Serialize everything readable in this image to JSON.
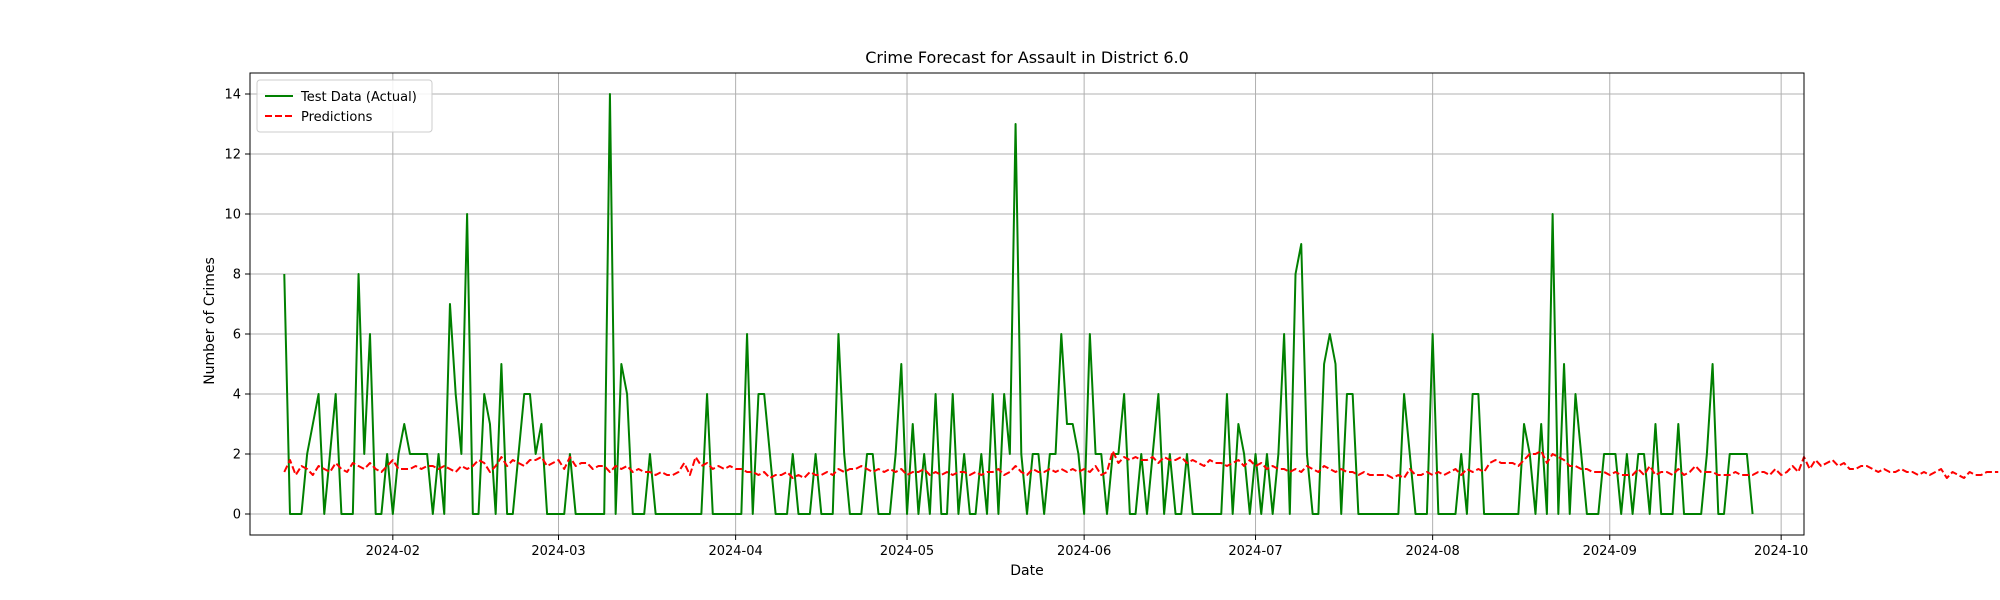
{
  "chart_data": {
    "type": "line",
    "title": "Crime Forecast for Assault in District 6.0",
    "xlabel": "Date",
    "ylabel": "Number of Crimes",
    "x_range": [
      "2024-01-07",
      "2024-10-05"
    ],
    "ylim": [
      -0.7,
      14.7
    ],
    "grid": true,
    "legend_position": "top-left",
    "x_ticks": [
      "2024-02-01",
      "2024-03-01",
      "2024-04-01",
      "2024-05-01",
      "2024-06-01",
      "2024-07-01",
      "2024-08-01",
      "2024-09-01",
      "2024-10-01"
    ],
    "x_tick_labels": [
      "2024-02",
      "2024-03",
      "2024-04",
      "2024-05",
      "2024-06",
      "2024-07",
      "2024-08",
      "2024-09",
      "2024-10"
    ],
    "y_ticks": [
      0,
      2,
      4,
      6,
      8,
      10,
      12,
      14
    ],
    "start_date": "2024-01-13",
    "series": [
      {
        "name": "Test Data (Actual)",
        "color": "#008000",
        "style": "solid",
        "values": [
          8,
          0,
          0,
          0,
          2,
          3,
          4,
          0,
          2,
          4,
          0,
          0,
          0,
          8,
          2,
          6,
          0,
          0,
          2,
          0,
          2,
          3,
          2,
          2,
          2,
          2,
          0,
          2,
          0,
          7,
          4,
          2,
          10,
          0,
          0,
          4,
          3,
          0,
          5,
          0,
          0,
          2,
          4,
          4,
          2,
          3,
          0,
          0,
          0,
          0,
          2,
          0,
          0,
          0,
          0,
          0,
          0,
          14,
          0,
          5,
          4,
          0,
          0,
          0,
          2,
          0,
          0,
          0,
          0,
          0,
          0,
          0,
          0,
          0,
          4,
          0,
          0,
          0,
          0,
          0,
          0,
          6,
          0,
          4,
          4,
          2,
          0,
          0,
          0,
          2,
          0,
          0,
          0,
          2,
          0,
          0,
          0,
          6,
          2,
          0,
          0,
          0,
          2,
          2,
          0,
          0,
          0,
          2,
          5,
          0,
          3,
          0,
          2,
          0,
          4,
          0,
          0,
          4,
          0,
          2,
          0,
          0,
          2,
          0,
          4,
          0,
          4,
          2,
          13,
          2,
          0,
          2,
          2,
          0,
          2,
          2,
          6,
          3,
          3,
          2,
          0,
          6,
          2,
          2,
          0,
          2,
          2,
          4,
          0,
          0,
          2,
          0,
          2,
          4,
          0,
          2,
          0,
          0,
          2,
          0,
          0,
          0,
          0,
          0,
          0,
          4,
          0,
          3,
          2,
          0,
          2,
          0,
          2,
          0,
          2,
          6,
          0,
          8,
          9,
          2,
          0,
          0,
          5,
          6,
          5,
          0,
          4,
          4,
          0,
          0,
          0,
          0,
          0,
          0,
          0,
          0,
          4,
          2,
          0,
          0,
          0,
          6,
          0,
          0,
          0,
          0,
          2,
          0,
          4,
          4,
          0,
          0,
          0,
          0,
          0,
          0,
          0,
          3,
          2,
          0,
          3,
          0,
          10,
          0,
          5,
          0,
          4,
          2,
          0,
          0,
          0,
          2,
          2,
          2,
          0,
          2,
          0,
          2,
          2,
          0,
          3,
          0,
          0,
          0,
          3,
          0,
          0,
          0,
          0,
          2,
          5,
          0,
          0,
          2,
          2,
          2,
          2,
          0
        ]
      },
      {
        "name": "Predictions",
        "color": "#ff0000",
        "style": "dashed",
        "values": [
          1.4,
          1.8,
          1.3,
          1.6,
          1.5,
          1.3,
          1.6,
          1.5,
          1.4,
          1.7,
          1.5,
          1.4,
          1.7,
          1.6,
          1.5,
          1.7,
          1.5,
          1.4,
          1.6,
          1.8,
          1.5,
          1.5,
          1.5,
          1.6,
          1.5,
          1.6,
          1.6,
          1.5,
          1.6,
          1.5,
          1.4,
          1.6,
          1.5,
          1.6,
          1.8,
          1.7,
          1.4,
          1.6,
          1.9,
          1.6,
          1.8,
          1.7,
          1.6,
          1.8,
          1.8,
          1.9,
          1.6,
          1.7,
          1.8,
          1.5,
          1.9,
          1.6,
          1.7,
          1.7,
          1.5,
          1.6,
          1.6,
          1.4,
          1.6,
          1.5,
          1.6,
          1.4,
          1.5,
          1.4,
          1.4,
          1.3,
          1.4,
          1.3,
          1.3,
          1.4,
          1.7,
          1.3,
          1.9,
          1.6,
          1.7,
          1.5,
          1.6,
          1.5,
          1.6,
          1.5,
          1.5,
          1.4,
          1.4,
          1.3,
          1.4,
          1.2,
          1.3,
          1.3,
          1.4,
          1.2,
          1.3,
          1.2,
          1.4,
          1.3,
          1.3,
          1.4,
          1.3,
          1.5,
          1.4,
          1.5,
          1.5,
          1.6,
          1.5,
          1.4,
          1.5,
          1.4,
          1.5,
          1.4,
          1.5,
          1.3,
          1.4,
          1.4,
          1.5,
          1.3,
          1.4,
          1.3,
          1.4,
          1.3,
          1.4,
          1.4,
          1.3,
          1.4,
          1.3,
          1.4,
          1.4,
          1.5,
          1.3,
          1.4,
          1.6,
          1.4,
          1.3,
          1.5,
          1.4,
          1.4,
          1.5,
          1.4,
          1.5,
          1.4,
          1.5,
          1.4,
          1.5,
          1.4,
          1.6,
          1.3,
          1.4,
          2.1,
          1.7,
          1.9,
          1.8,
          1.9,
          1.8,
          1.8,
          1.9,
          1.7,
          1.9,
          1.8,
          1.8,
          1.9,
          1.7,
          1.8,
          1.7,
          1.6,
          1.8,
          1.7,
          1.7,
          1.6,
          1.7,
          1.8,
          1.6,
          1.8,
          1.6,
          1.7,
          1.5,
          1.6,
          1.5,
          1.5,
          1.4,
          1.5,
          1.4,
          1.6,
          1.5,
          1.4,
          1.6,
          1.5,
          1.4,
          1.5,
          1.4,
          1.4,
          1.3,
          1.4,
          1.3,
          1.3,
          1.3,
          1.3,
          1.2,
          1.3,
          1.2,
          1.5,
          1.3,
          1.3,
          1.4,
          1.3,
          1.4,
          1.3,
          1.4,
          1.5,
          1.3,
          1.5,
          1.4,
          1.5,
          1.4,
          1.7,
          1.8,
          1.7,
          1.7,
          1.7,
          1.6,
          1.8,
          2.0,
          2.0,
          2.1,
          1.7,
          2.0,
          1.9,
          1.8,
          1.6,
          1.6,
          1.5,
          1.5,
          1.4,
          1.4,
          1.4,
          1.3,
          1.4,
          1.3,
          1.3,
          1.3,
          1.5,
          1.3,
          1.6,
          1.3,
          1.4,
          1.4,
          1.3,
          1.5,
          1.3,
          1.4,
          1.6,
          1.4,
          1.4,
          1.4,
          1.3,
          1.3,
          1.3,
          1.4,
          1.3,
          1.3,
          1.3,
          1.4,
          1.4,
          1.3,
          1.5,
          1.3,
          1.4,
          1.6,
          1.4,
          1.9,
          1.5,
          1.8,
          1.6,
          1.7,
          1.8,
          1.6,
          1.7,
          1.5,
          1.5,
          1.6,
          1.6,
          1.5,
          1.4,
          1.5,
          1.4,
          1.4,
          1.5,
          1.4,
          1.4,
          1.3,
          1.4,
          1.3,
          1.4,
          1.5,
          1.2,
          1.4,
          1.3,
          1.2,
          1.4,
          1.3,
          1.3,
          1.4,
          1.4,
          1.4
        ]
      }
    ]
  }
}
